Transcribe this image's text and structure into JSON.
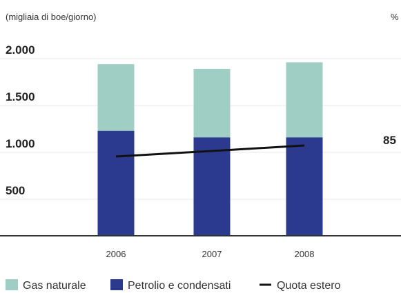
{
  "chart_data": {
    "type": "bar",
    "stacked": true,
    "y_unit_label": "(migliaia di boe/giorno)",
    "y2_unit_label": "%",
    "categories": [
      "2006",
      "2007",
      "2008"
    ],
    "ylim": [
      0,
      2000
    ],
    "yticks": [
      "500",
      "1.000",
      "1.500",
      "2.000"
    ],
    "ytick_values": [
      500,
      1000,
      1500,
      2000
    ],
    "series": [
      {
        "name": "Petrolio e condensati",
        "color": "#2b3a8f",
        "values": [
          1120,
          1050,
          1050
        ]
      },
      {
        "name": "Gas naturale",
        "color": "#9fcfc4",
        "values": [
          710,
          730,
          800
        ]
      }
    ],
    "line_series": {
      "name": "Quota estero",
      "color": "#111111",
      "values": [
        82,
        83,
        84
      ],
      "y2_label": "85",
      "y2_label_value": 85
    },
    "legend": [
      "Gas naturale",
      "Petrolio e condensati",
      "Quota estero"
    ],
    "grid": true,
    "legend_position": "bottom"
  }
}
